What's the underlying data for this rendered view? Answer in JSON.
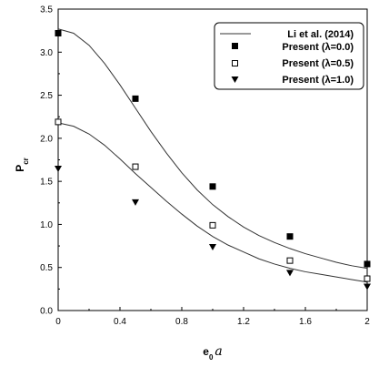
{
  "chart_data": {
    "type": "line",
    "xlabel_base": "e",
    "xlabel_sub": "0",
    "xlabel_var": "a",
    "ylabel_base": "P",
    "ylabel_sub": "cr",
    "xlim": [
      0,
      2
    ],
    "ylim": [
      0,
      3.5
    ],
    "xticks": [
      "0",
      "0.4",
      "0.8",
      "1.2",
      "1.6",
      "2"
    ],
    "yticks": [
      "0.0",
      "0.5",
      "1.0",
      "1.5",
      "2.0",
      "2.5",
      "3.0",
      "3.5"
    ],
    "legend_position": "top-right",
    "series": [
      {
        "name": "Li et al. (2014)",
        "marker": "line",
        "curves": [
          {
            "x": [
              0,
              0.1,
              0.2,
              0.3,
              0.4,
              0.5,
              0.6,
              0.7,
              0.8,
              0.9,
              1.0,
              1.1,
              1.2,
              1.3,
              1.4,
              1.5,
              1.6,
              1.7,
              1.8,
              1.9,
              2.0
            ],
            "y": [
              3.27,
              3.22,
              3.08,
              2.87,
              2.62,
              2.35,
              2.08,
              1.83,
              1.6,
              1.4,
              1.23,
              1.09,
              0.97,
              0.87,
              0.79,
              0.72,
              0.66,
              0.61,
              0.56,
              0.52,
              0.49
            ]
          },
          {
            "x": [
              0,
              0.1,
              0.2,
              0.3,
              0.4,
              0.5,
              0.6,
              0.7,
              0.8,
              0.9,
              1.0,
              1.1,
              1.2,
              1.3,
              1.4,
              1.5,
              1.6,
              1.7,
              1.8,
              1.9,
              2.0
            ],
            "y": [
              2.18,
              2.14,
              2.05,
              1.92,
              1.76,
              1.59,
              1.43,
              1.27,
              1.12,
              0.98,
              0.86,
              0.76,
              0.68,
              0.6,
              0.54,
              0.49,
              0.45,
              0.42,
              0.39,
              0.36,
              0.33
            ]
          }
        ]
      },
      {
        "name": "Present (λ=0.0)",
        "marker": "filled-square",
        "x": [
          0,
          0.5,
          1.0,
          1.5,
          2.0
        ],
        "y": [
          3.22,
          2.46,
          1.44,
          0.86,
          0.54
        ]
      },
      {
        "name": "Present (λ=0.5)",
        "marker": "open-square",
        "x": [
          0,
          0.5,
          1.0,
          1.5,
          2.0
        ],
        "y": [
          2.19,
          1.67,
          0.99,
          0.58,
          0.37
        ]
      },
      {
        "name": "Present (λ=1.0)",
        "marker": "filled-triangle-down",
        "x": [
          0,
          0.5,
          1.0,
          1.5,
          2.0
        ],
        "y": [
          1.65,
          1.26,
          0.74,
          0.44,
          0.28
        ]
      }
    ],
    "colors": {
      "line": "#333333",
      "marker": "#000000",
      "background": "#ffffff"
    }
  }
}
